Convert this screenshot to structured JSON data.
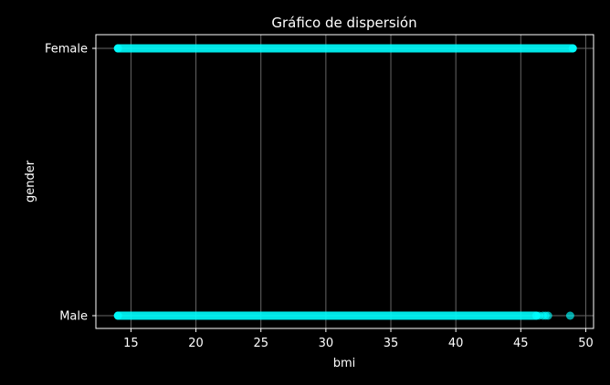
{
  "chart_data": {
    "type": "scatter",
    "title": "Gráfico de dispersión",
    "xlabel": "bmi",
    "ylabel": "gender",
    "xlim": [
      12.3,
      50.6
    ],
    "x_ticks": [
      15,
      20,
      25,
      30,
      35,
      40,
      45,
      50
    ],
    "categories": [
      "Male",
      "Female"
    ],
    "grid": true,
    "colors": {
      "background": "#000000",
      "marker": "#00ffff",
      "grid": "#666666",
      "axis": "#ffffff"
    },
    "series": [
      {
        "category": "Female",
        "dense_range": [
          14.0,
          49.0
        ],
        "outliers": []
      },
      {
        "category": "Male",
        "dense_range": [
          14.0,
          46.2
        ],
        "outliers": [
          46.4,
          46.7,
          46.9,
          47.1,
          48.8
        ]
      }
    ]
  }
}
